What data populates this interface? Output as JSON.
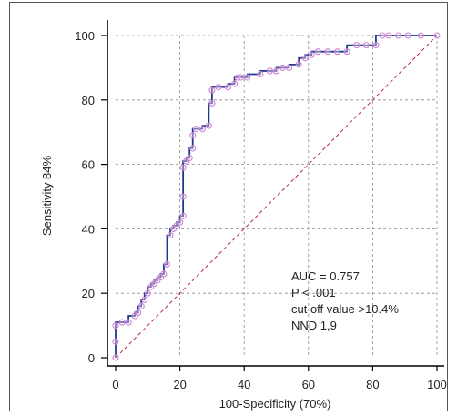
{
  "colors": {
    "roc_line": "#1f3a8a",
    "roc_marker": "#d27fd6",
    "diagonal": "#c0234a",
    "grid": "#8c8c8c",
    "axis": "#000000"
  },
  "chart_data": {
    "type": "line",
    "title": "",
    "xlabel": "100-Specificity (70%)",
    "ylabel": "Sensitivity 84%",
    "xlim": [
      0,
      100
    ],
    "ylim": [
      0,
      100
    ],
    "x_ticks": [
      "0",
      "20",
      "40",
      "60",
      "80",
      "100"
    ],
    "y_ticks": [
      "0",
      "20",
      "40",
      "60",
      "80",
      "100"
    ],
    "grid": true,
    "annotations": [
      "AUC = 0.757",
      "P < .001",
      "cut off value >10.4%",
      "NND 1,9"
    ],
    "series": [
      {
        "style": "stepped line with open circle markers",
        "x": [
          0,
          0,
          0,
          2,
          4,
          6,
          7,
          8,
          9,
          10,
          11,
          12,
          13,
          14,
          15,
          16,
          17,
          18,
          19,
          20,
          21,
          21,
          21,
          22,
          23,
          24,
          24,
          25,
          27,
          29,
          30,
          30,
          32,
          35,
          37,
          38,
          39,
          41,
          45,
          48,
          50,
          52,
          54,
          57,
          59,
          61,
          63,
          66,
          69,
          72,
          75,
          78,
          81,
          83,
          85,
          88,
          91,
          95,
          100
        ],
        "y": [
          0,
          5,
          10,
          11,
          11,
          13,
          14,
          16,
          18,
          20,
          22,
          23,
          24,
          25,
          26,
          29,
          38,
          40,
          41,
          42,
          44,
          50,
          59,
          61,
          62,
          65,
          69,
          71,
          71,
          72,
          79,
          83,
          84,
          84,
          85,
          87,
          87,
          87,
          88,
          89,
          89,
          90,
          90,
          91,
          93,
          94,
          95,
          95,
          95,
          95,
          97,
          97,
          97,
          100,
          100,
          100,
          100,
          100,
          100
        ]
      },
      {
        "style": "dashed diagonal reference line",
        "x": [
          0,
          100
        ],
        "y": [
          0,
          100
        ]
      }
    ]
  }
}
